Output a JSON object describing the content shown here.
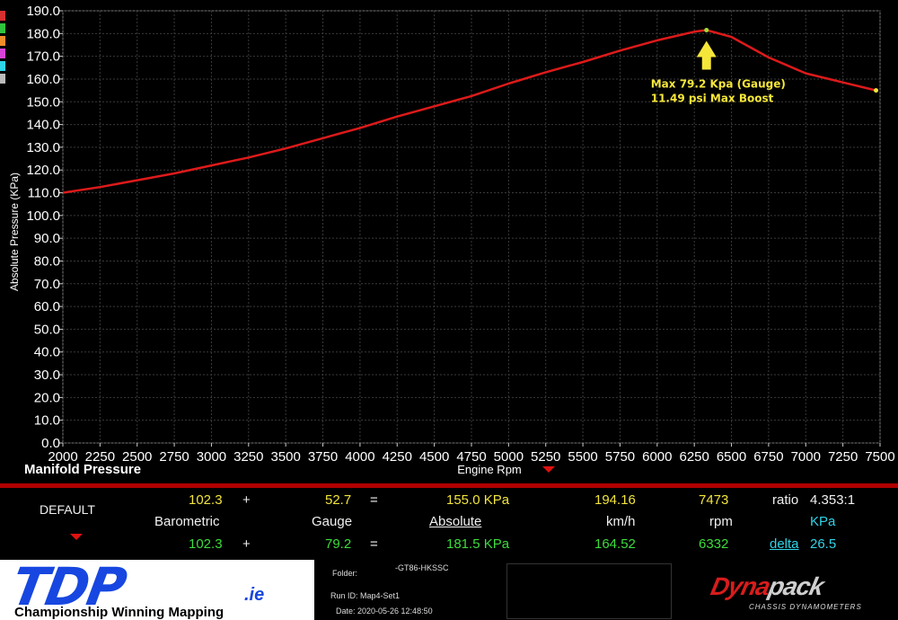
{
  "chart_data": {
    "type": "line",
    "title": "Manifold Pressure",
    "xlabel": "Engine Rpm",
    "ylabel": "Absolute Pressure (KPa)",
    "xlim": [
      2000,
      7500
    ],
    "ylim": [
      0,
      190
    ],
    "x_ticks": [
      "2000",
      "2250",
      "2500",
      "2750",
      "3000",
      "3250",
      "3500",
      "3750",
      "4000",
      "4250",
      "4500",
      "4750",
      "5000",
      "5250",
      "5500",
      "5750",
      "6000",
      "6250",
      "6500",
      "6750",
      "7000",
      "7250",
      "7500"
    ],
    "y_ticks": [
      "0.0",
      "10.0",
      "20.0",
      "30.0",
      "40.0",
      "50.0",
      "60.0",
      "70.0",
      "80.0",
      "90.0",
      "100.0",
      "110.0",
      "120.0",
      "130.0",
      "140.0",
      "150.0",
      "160.0",
      "170.0",
      "180.0",
      "190.0"
    ],
    "grid": true,
    "series": [
      {
        "color": "#dd1a1a",
        "x": [
          2000,
          2250,
          2500,
          2750,
          3000,
          3250,
          3500,
          3750,
          4000,
          4250,
          4500,
          4750,
          5000,
          5250,
          5500,
          5750,
          6000,
          6250,
          6332,
          6500,
          6750,
          7000,
          7250,
          7473
        ],
        "y": [
          110.0,
          112.5,
          115.5,
          118.5,
          122.0,
          125.5,
          129.5,
          134.0,
          138.5,
          143.5,
          148.0,
          152.5,
          158.0,
          163.0,
          167.5,
          172.5,
          177.0,
          180.8,
          181.5,
          178.5,
          169.5,
          162.5,
          158.5,
          155.0
        ]
      }
    ],
    "annotations": [
      {
        "text_line1": "Max  79.2 Kpa (Gauge)",
        "text_line2": "11.49 psi Max Boost",
        "x": 6332,
        "y": 181.5
      }
    ]
  },
  "colors": {
    "accent_red": "#dd1a1a",
    "annotation_yellow": "#f5e63a",
    "side_marks": [
      "#d63030",
      "#2fc23f",
      "#f28c28",
      "#d844d8",
      "#2fd4e8",
      "#bbbbbb"
    ]
  },
  "summary": {
    "run_label": "DEFAULT",
    "row1": {
      "barometric": "102.3",
      "plus": "+",
      "gauge": "52.7",
      "eq": "=",
      "absolute": "155.0 KPa",
      "speed": "194.16",
      "rpm": "7473",
      "ratio_label": "ratio",
      "ratio": "4.353:1"
    },
    "headers": {
      "barometric": "Barometric",
      "gauge": "Gauge",
      "absolute": "Absolute",
      "speed": "km/h",
      "rpm": "rpm",
      "unit": "KPa"
    },
    "row2": {
      "barometric": "102.3",
      "plus": "+",
      "gauge": "79.2",
      "eq": "=",
      "absolute": "181.5 KPa",
      "speed": "164.52",
      "rpm": "6332",
      "delta_label": "delta",
      "delta": "26.5"
    }
  },
  "footer": {
    "logo_text": "TDP",
    "logo_suffix": ".ie",
    "tagline": "Championship Winning Mapping",
    "folder_label": "Folder:",
    "folder_value": "-GT86-HKSSC",
    "run_id": "Run ID: Map4-Set1",
    "date": "Date: 2020-05-26 12:48:50",
    "brand_dyna": "Dyna",
    "brand_pack": "pack",
    "brand_sub": "CHASSIS DYNAMOMETERS"
  }
}
